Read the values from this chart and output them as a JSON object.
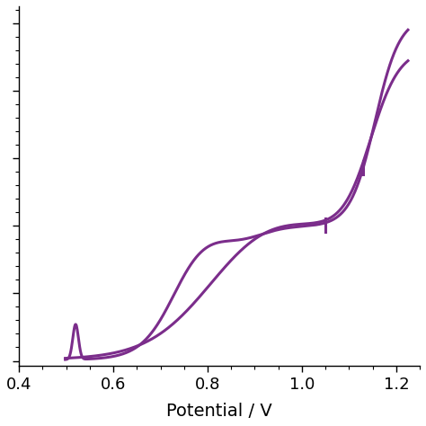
{
  "xlabel": "Potential / V",
  "xlim": [
    0.4,
    1.25
  ],
  "ylim": [
    -0.015,
    1.05
  ],
  "xticks": [
    0.4,
    0.6,
    0.8,
    1.0,
    1.2
  ],
  "line_color": "#7B2D8B",
  "line_width": 2.2,
  "background_color": "#ffffff",
  "figsize": [
    4.74,
    4.74
  ],
  "dpi": 100
}
